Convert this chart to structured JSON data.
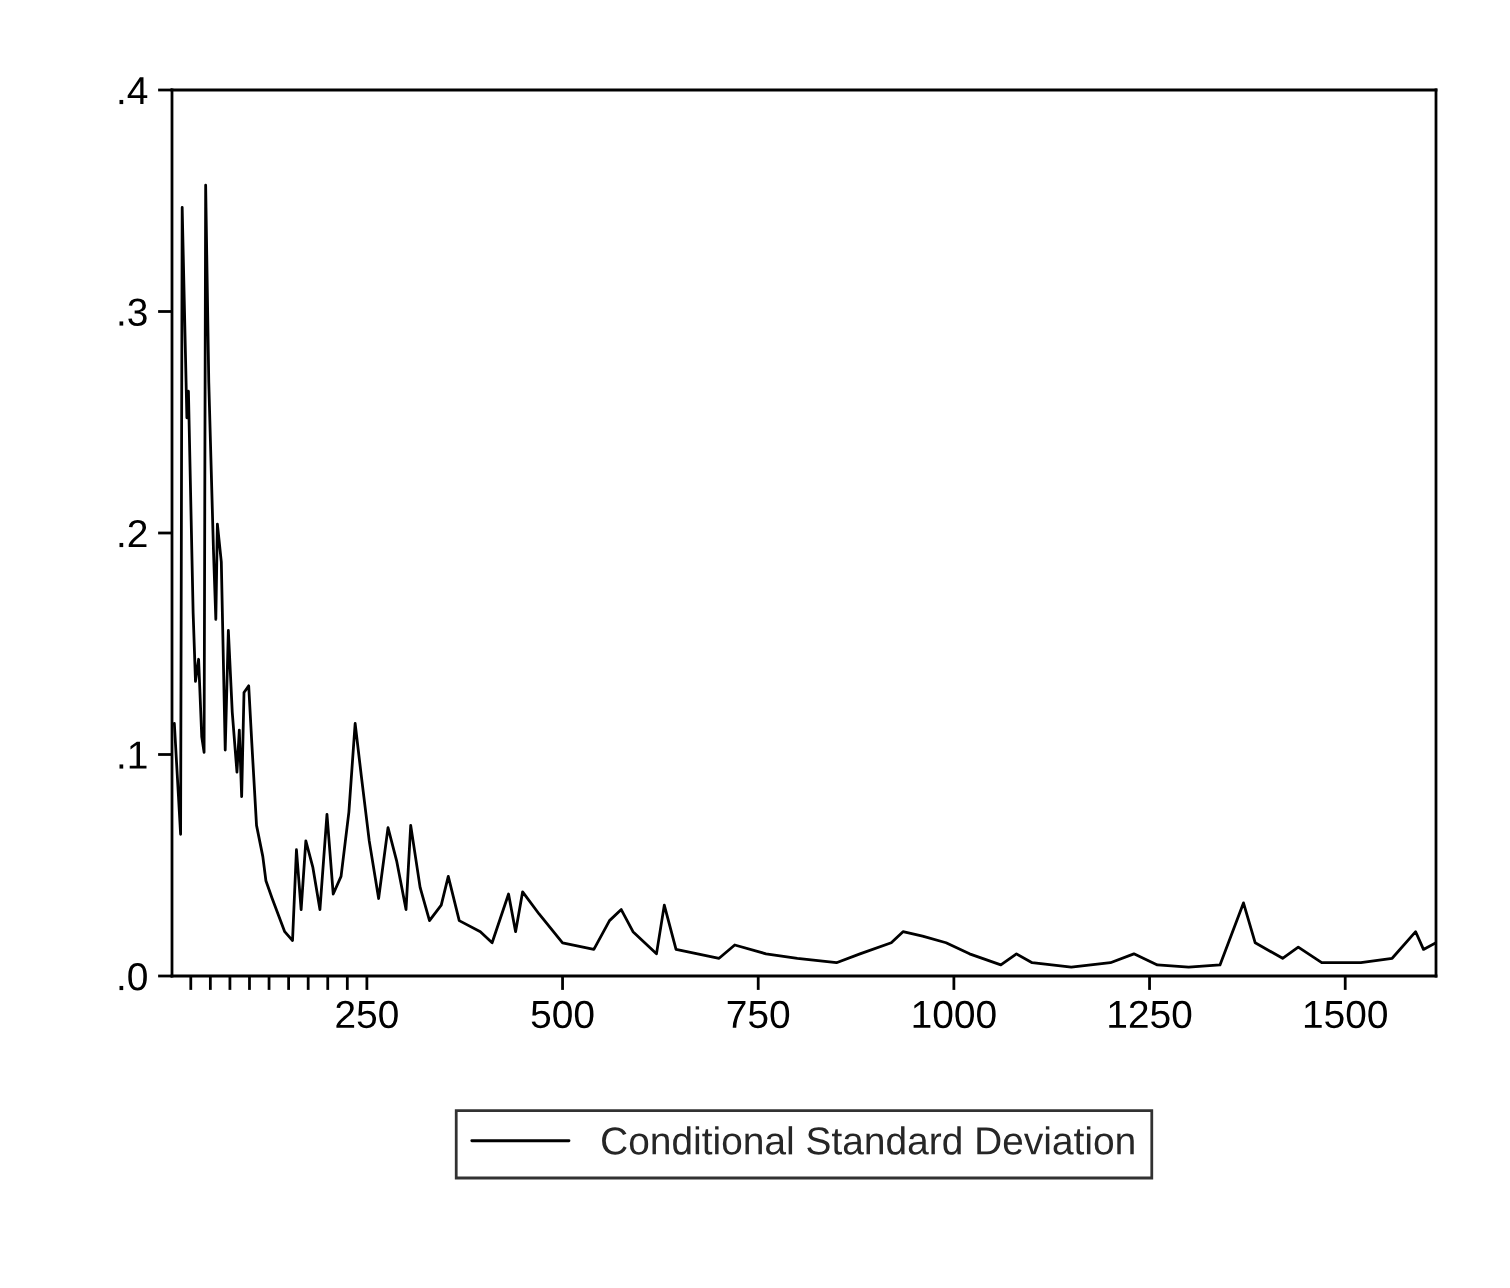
{
  "chart_data": {
    "type": "line",
    "series": [
      {
        "name": "Conditional Standard Deviation",
        "color": "#000000",
        "x": [
          4,
          12,
          14,
          20,
          22,
          28,
          31,
          35,
          39,
          42,
          44,
          48,
          54,
          57,
          59,
          64,
          69,
          73,
          78,
          84,
          87,
          90,
          93,
          99,
          103,
          109,
          117,
          121,
          129,
          145,
          155,
          160,
          166,
          172,
          181,
          190,
          199,
          207,
          217,
          227,
          235,
          243,
          253,
          265,
          277,
          288,
          300,
          306,
          318,
          330,
          345,
          354,
          368,
          395,
          410,
          431,
          440,
          449,
          470,
          500,
          540,
          560,
          575,
          590,
          620,
          630,
          645,
          700,
          720,
          760,
          800,
          850,
          880,
          920,
          935,
          960,
          990,
          1020,
          1060,
          1080,
          1100,
          1150,
          1200,
          1230,
          1260,
          1300,
          1340,
          1370,
          1385,
          1420,
          1440,
          1470,
          1520,
          1560,
          1590,
          1600,
          1616
        ],
        "values": [
          0.114,
          0.064,
          0.347,
          0.252,
          0.264,
          0.164,
          0.133,
          0.143,
          0.108,
          0.101,
          0.357,
          0.268,
          0.192,
          0.161,
          0.204,
          0.187,
          0.102,
          0.156,
          0.119,
          0.092,
          0.111,
          0.081,
          0.128,
          0.131,
          0.105,
          0.068,
          0.054,
          0.043,
          0.035,
          0.02,
          0.016,
          0.057,
          0.03,
          0.061,
          0.049,
          0.03,
          0.073,
          0.037,
          0.045,
          0.074,
          0.114,
          0.09,
          0.061,
          0.035,
          0.067,
          0.052,
          0.03,
          0.068,
          0.04,
          0.025,
          0.032,
          0.045,
          0.025,
          0.02,
          0.015,
          0.037,
          0.02,
          0.038,
          0.028,
          0.015,
          0.012,
          0.025,
          0.03,
          0.02,
          0.01,
          0.032,
          0.012,
          0.008,
          0.014,
          0.01,
          0.008,
          0.006,
          0.01,
          0.015,
          0.02,
          0.018,
          0.015,
          0.01,
          0.005,
          0.01,
          0.006,
          0.004,
          0.006,
          0.01,
          0.005,
          0.004,
          0.005,
          0.033,
          0.015,
          0.008,
          0.013,
          0.006,
          0.006,
          0.008,
          0.02,
          0.012,
          0.015
        ]
      }
    ],
    "xlim": [
      1,
      1616
    ],
    "xticks": [
      {
        "value": 25,
        "label": null
      },
      {
        "value": 50,
        "label": null
      },
      {
        "value": 75,
        "label": null
      },
      {
        "value": 100,
        "label": null
      },
      {
        "value": 125,
        "label": null
      },
      {
        "value": 150,
        "label": null
      },
      {
        "value": 175,
        "label": null
      },
      {
        "value": 200,
        "label": null
      },
      {
        "value": 225,
        "label": null
      },
      250,
      500,
      750,
      1000,
      1250,
      1500
    ],
    "ylim": [
      0,
      0.4
    ],
    "yticks": [
      {
        "value": 0,
        "label": ".0"
      },
      {
        "value": 0.1,
        "label": ".1"
      },
      {
        "value": 0.2,
        "label": ".2"
      },
      {
        "value": 0.3,
        "label": ".3"
      },
      {
        "value": 0.4,
        "label": ".4"
      }
    ],
    "grid": false,
    "legend": "bottom",
    "marker": "none",
    "line_style": "solid"
  }
}
